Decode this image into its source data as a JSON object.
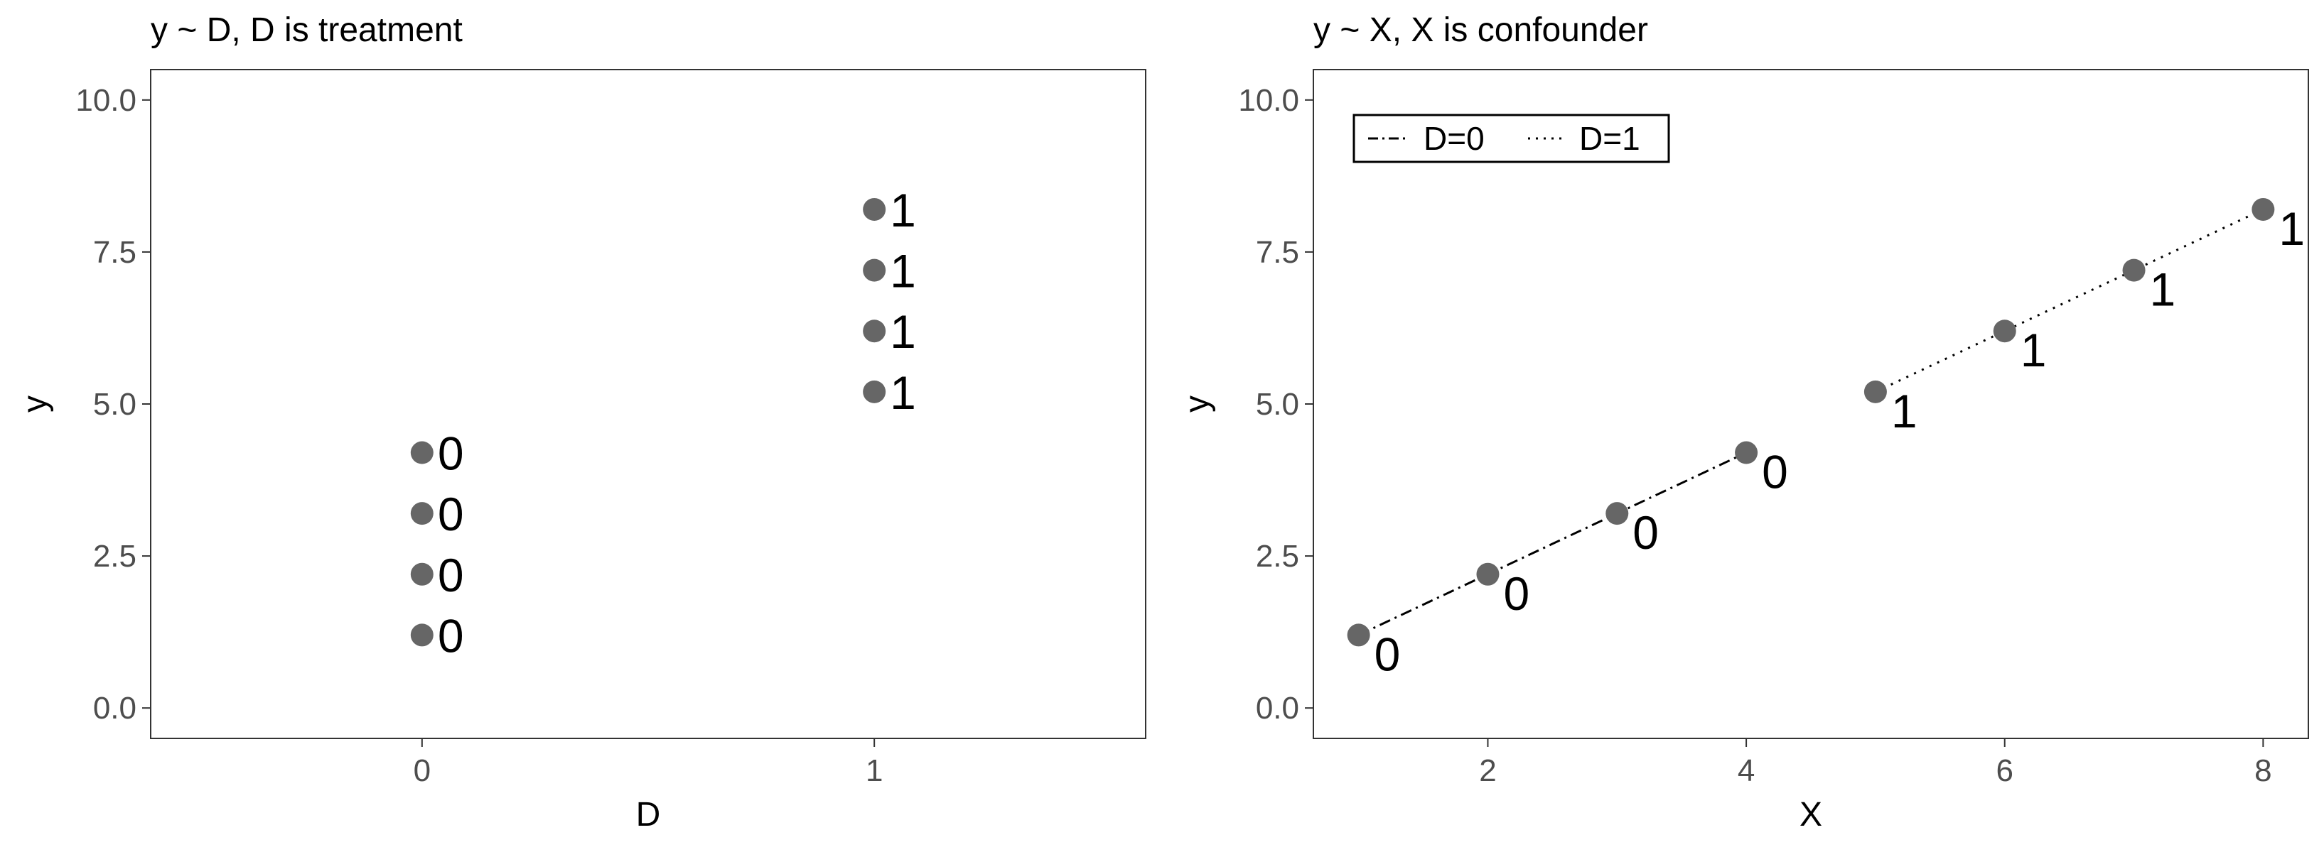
{
  "chart_data": [
    {
      "type": "scatter",
      "title": "y ~ D, D is treatment",
      "xlabel": "D",
      "ylabel": "y",
      "x_scale": "discrete",
      "xlim": [
        -0.6,
        1.6
      ],
      "ylim": [
        -0.5,
        10.5
      ],
      "x_ticks": [
        0,
        1
      ],
      "x_tick_labels": [
        "0",
        "1"
      ],
      "y_ticks": [
        0,
        2.5,
        5,
        7.5,
        10
      ],
      "y_tick_labels": [
        "0.0",
        "2.5",
        "5.0",
        "7.5",
        "10.0"
      ],
      "grid": false,
      "point_color": "#666666",
      "points": [
        {
          "x": 0,
          "y": 1.2,
          "label": "0"
        },
        {
          "x": 0,
          "y": 2.2,
          "label": "0"
        },
        {
          "x": 0,
          "y": 3.2,
          "label": "0"
        },
        {
          "x": 0,
          "y": 4.2,
          "label": "0"
        },
        {
          "x": 1,
          "y": 5.2,
          "label": "1"
        },
        {
          "x": 1,
          "y": 6.2,
          "label": "1"
        },
        {
          "x": 1,
          "y": 7.2,
          "label": "1"
        },
        {
          "x": 1,
          "y": 8.2,
          "label": "1"
        }
      ],
      "lines": []
    },
    {
      "type": "scatter",
      "title": "y ~ X, X is confounder",
      "xlabel": "X",
      "ylabel": "y",
      "x_scale": "continuous",
      "xlim": [
        0.65,
        8.35
      ],
      "ylim": [
        -0.5,
        10.5
      ],
      "x_ticks": [
        2,
        4,
        6,
        8
      ],
      "x_tick_labels": [
        "2",
        "4",
        "6",
        "8"
      ],
      "y_ticks": [
        0,
        2.5,
        5,
        7.5,
        10
      ],
      "y_tick_labels": [
        "0.0",
        "2.5",
        "5.0",
        "7.5",
        "10.0"
      ],
      "grid": false,
      "point_color": "#666666",
      "points": [
        {
          "x": 1,
          "y": 1.2,
          "label": "0"
        },
        {
          "x": 2,
          "y": 2.2,
          "label": "0"
        },
        {
          "x": 3,
          "y": 3.2,
          "label": "0"
        },
        {
          "x": 4,
          "y": 4.2,
          "label": "0"
        },
        {
          "x": 5,
          "y": 5.2,
          "label": "1"
        },
        {
          "x": 6,
          "y": 6.2,
          "label": "1"
        },
        {
          "x": 7,
          "y": 7.2,
          "label": "1"
        },
        {
          "x": 8,
          "y": 8.2,
          "label": "1"
        }
      ],
      "lines": [
        {
          "name": "D=0",
          "linetype": "dotdash",
          "x": [
            1,
            4
          ],
          "y": [
            1.2,
            4.2
          ]
        },
        {
          "name": "D=1",
          "linetype": "dotted",
          "x": [
            5,
            8
          ],
          "y": [
            5.2,
            8.2
          ]
        }
      ],
      "legend": {
        "placement": "top-left",
        "entries": [
          {
            "label": "D=0",
            "linetype": "dotdash"
          },
          {
            "label": "D=1",
            "linetype": "dotted"
          }
        ]
      }
    }
  ]
}
